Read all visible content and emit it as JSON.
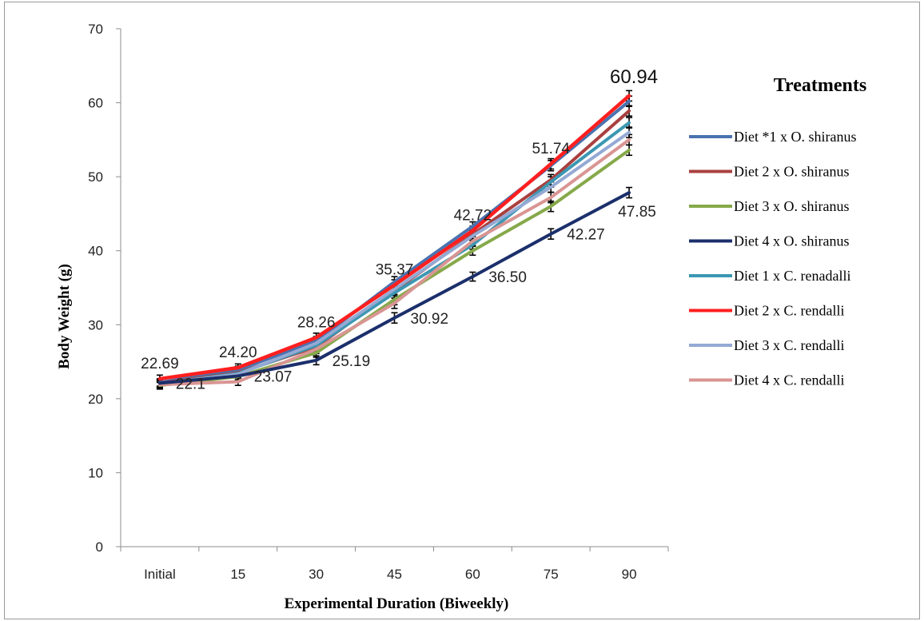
{
  "chart_data": {
    "type": "line",
    "xlabel": "Experimental Duration (Biweekly)",
    "ylabel": "Body Weight  (g)",
    "categories": [
      "Initial",
      "15",
      "30",
      "45",
      "60",
      "75",
      "90"
    ],
    "ylim": [
      0,
      70
    ],
    "yticks": [
      0,
      10,
      20,
      30,
      40,
      50,
      60,
      70
    ],
    "legend_title": "Treatments",
    "legend_position": "right",
    "grid": false,
    "series": [
      {
        "name": "Diet *1 x O. shiranus",
        "color": "#4a72b0",
        "values": [
          22.2,
          23.9,
          27.8,
          35.8,
          43.3,
          51.5,
          60.2
        ]
      },
      {
        "name": "Diet 2 x O. shiranus",
        "color": "#a9403f",
        "values": [
          22.1,
          23.5,
          27.0,
          34.6,
          42.2,
          49.6,
          58.9
        ]
      },
      {
        "name": "Diet 3 x O. shiranus",
        "color": "#86a94a",
        "values": [
          21.8,
          23.0,
          26.2,
          33.4,
          40.0,
          46.0,
          53.6
        ]
      },
      {
        "name": "Diet 4 x O. shiranus",
        "color": "#1b2f6b",
        "values": [
          22.1,
          23.07,
          25.19,
          30.92,
          36.5,
          42.27,
          47.85
        ]
      },
      {
        "name": "Diet 1 x C. renadalli",
        "color": "#3c97b2",
        "values": [
          22.0,
          23.4,
          27.2,
          34.3,
          40.8,
          49.3,
          57.3
        ]
      },
      {
        "name": "Diet 2 x C. rendalli",
        "color": "#ff1f1f",
        "values": [
          22.69,
          24.2,
          28.26,
          35.37,
          42.72,
          51.74,
          60.94
        ]
      },
      {
        "name": "Diet 3 x C. rendalli",
        "color": "#94a9d4",
        "values": [
          22.0,
          23.3,
          27.5,
          34.8,
          42.0,
          48.6,
          56.0
        ]
      },
      {
        "name": "Diet 4 x C. rendalli",
        "color": "#d99593",
        "values": [
          21.9,
          22.3,
          26.7,
          32.9,
          41.3,
          47.2,
          55.0
        ]
      }
    ],
    "error": [
      0.5,
      0.5,
      0.6,
      0.7,
      0.6,
      0.7,
      0.7
    ],
    "annotations": [
      {
        "text": "22.69",
        "series": 5,
        "point": 0,
        "pos": "above"
      },
      {
        "text": "22.1",
        "series": 3,
        "point": 0,
        "pos": "right"
      },
      {
        "text": "24.20",
        "series": 5,
        "point": 1,
        "pos": "above"
      },
      {
        "text": "23.07",
        "series": 3,
        "point": 1,
        "pos": "right"
      },
      {
        "text": "28.26",
        "series": 5,
        "point": 2,
        "pos": "above"
      },
      {
        "text": "25.19",
        "series": 3,
        "point": 2,
        "pos": "right"
      },
      {
        "text": "35.37",
        "series": 5,
        "point": 3,
        "pos": "above"
      },
      {
        "text": "30.92",
        "series": 3,
        "point": 3,
        "pos": "right"
      },
      {
        "text": "42.72",
        "series": 5,
        "point": 4,
        "pos": "above"
      },
      {
        "text": "36.50",
        "series": 3,
        "point": 4,
        "pos": "right"
      },
      {
        "text": "51.74",
        "series": 5,
        "point": 5,
        "pos": "above"
      },
      {
        "text": "42.27",
        "series": 3,
        "point": 5,
        "pos": "right"
      },
      {
        "text": "60.94",
        "series": 5,
        "point": 6,
        "pos": "above-big"
      },
      {
        "text": "47.85",
        "series": 3,
        "point": 6,
        "pos": "below"
      }
    ]
  }
}
